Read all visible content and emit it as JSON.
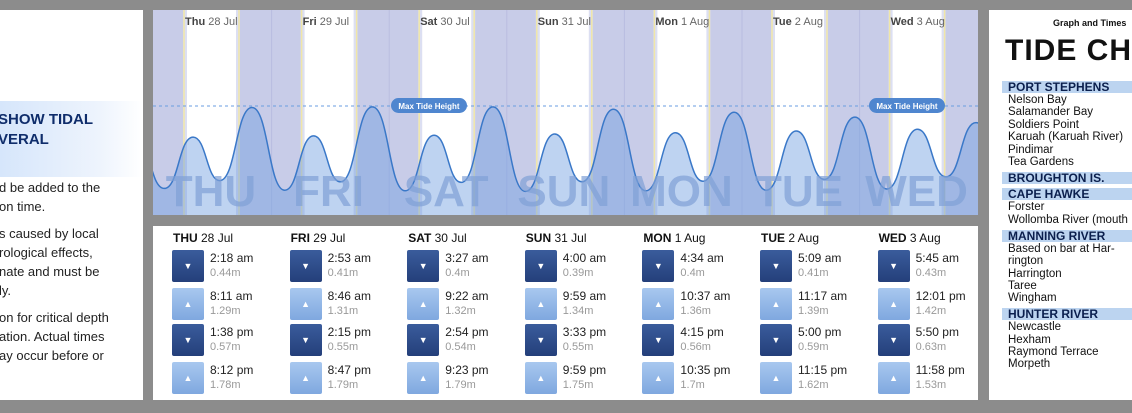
{
  "left": {
    "heading": [
      "SHOW TIDAL",
      "VERAL"
    ],
    "para1": [
      "d be added to the",
      "on time."
    ],
    "para2": [
      "s caused by local",
      "rological effects,",
      "nate and must be",
      "ly."
    ],
    "para3": [
      "on for critical depth",
      "ation. Actual times",
      "ay occur before or"
    ]
  },
  "chart": {
    "max_label": "Max Tide Height",
    "days": [
      {
        "dow": "Thu",
        "date": "28 Jul",
        "big": "THU"
      },
      {
        "dow": "Fri",
        "date": "29 Jul",
        "big": "FRI"
      },
      {
        "dow": "Sat",
        "date": "30 Jul",
        "big": "SAT"
      },
      {
        "dow": "Sun",
        "date": "31 Jul",
        "big": "SUN"
      },
      {
        "dow": "Mon",
        "date": "1 Aug",
        "big": "MON"
      },
      {
        "dow": "Tue",
        "date": "2 Aug",
        "big": "TUE"
      },
      {
        "dow": "Wed",
        "date": "3 Aug",
        "big": "WED"
      }
    ],
    "colors": {
      "night": "#c8cce8",
      "day": "#ffffff",
      "wave": "#6e9ee0",
      "line": "#3a78c8"
    }
  },
  "table": {
    "days": [
      {
        "dow": "THU",
        "date": "28 Jul",
        "tides": [
          {
            "type": "low",
            "time": "2:18 am",
            "height": "0.44m"
          },
          {
            "type": "high",
            "time": "8:11 am",
            "height": "1.29m"
          },
          {
            "type": "low",
            "time": "1:38 pm",
            "height": "0.57m"
          },
          {
            "type": "high",
            "time": "8:12 pm",
            "height": "1.78m"
          }
        ]
      },
      {
        "dow": "FRI",
        "date": "29 Jul",
        "tides": [
          {
            "type": "low",
            "time": "2:53 am",
            "height": "0.41m"
          },
          {
            "type": "high",
            "time": "8:46 am",
            "height": "1.31m"
          },
          {
            "type": "low",
            "time": "2:15 pm",
            "height": "0.55m"
          },
          {
            "type": "high",
            "time": "8:47 pm",
            "height": "1.79m"
          }
        ]
      },
      {
        "dow": "SAT",
        "date": "30 Jul",
        "tides": [
          {
            "type": "low",
            "time": "3:27 am",
            "height": "0.4m"
          },
          {
            "type": "high",
            "time": "9:22 am",
            "height": "1.32m"
          },
          {
            "type": "low",
            "time": "2:54 pm",
            "height": "0.54m"
          },
          {
            "type": "high",
            "time": "9:23 pm",
            "height": "1.79m"
          }
        ]
      },
      {
        "dow": "SUN",
        "date": "31 Jul",
        "tides": [
          {
            "type": "low",
            "time": "4:00 am",
            "height": "0.39m"
          },
          {
            "type": "high",
            "time": "9:59 am",
            "height": "1.34m"
          },
          {
            "type": "low",
            "time": "3:33 pm",
            "height": "0.55m"
          },
          {
            "type": "high",
            "time": "9:59 pm",
            "height": "1.75m"
          }
        ]
      },
      {
        "dow": "MON",
        "date": "1 Aug",
        "tides": [
          {
            "type": "low",
            "time": "4:34 am",
            "height": "0.4m"
          },
          {
            "type": "high",
            "time": "10:37 am",
            "height": "1.36m"
          },
          {
            "type": "low",
            "time": "4:15 pm",
            "height": "0.56m"
          },
          {
            "type": "high",
            "time": "10:35 pm",
            "height": "1.7m"
          }
        ]
      },
      {
        "dow": "TUE",
        "date": "2 Aug",
        "tides": [
          {
            "type": "low",
            "time": "5:09 am",
            "height": "0.41m"
          },
          {
            "type": "high",
            "time": "11:17 am",
            "height": "1.39m"
          },
          {
            "type": "low",
            "time": "5:00 pm",
            "height": "0.59m"
          },
          {
            "type": "high",
            "time": "11:15 pm",
            "height": "1.62m"
          }
        ]
      },
      {
        "dow": "WED",
        "date": "3 Aug",
        "tides": [
          {
            "type": "low",
            "time": "5:45 am",
            "height": "0.43m"
          },
          {
            "type": "high",
            "time": "12:01 pm",
            "height": "1.42m"
          },
          {
            "type": "low",
            "time": "5:50 pm",
            "height": "0.63m"
          },
          {
            "type": "high",
            "time": "11:58 pm",
            "height": "1.53m"
          }
        ]
      }
    ],
    "arrow_low": "▼",
    "arrow_high": "▲"
  },
  "right": {
    "graph_and_times": "Graph and Times",
    "title": "TIDE CH",
    "sections": [
      {
        "name": "PORT STEPHENS",
        "items": [
          "Nelson Bay",
          "Salamander Bay",
          "Soldiers Point",
          "Karuah (Karuah River)",
          "Pindimar",
          "Tea Gardens"
        ]
      },
      {
        "name": "BROUGHTON IS.",
        "items": []
      },
      {
        "name": "CAPE HAWKE",
        "items": [
          "Forster",
          "Wollomba River (mouth"
        ]
      },
      {
        "name": "MANNING RIVER",
        "items": [
          "Based on bar at Har-",
          "rington",
          "Harrington",
          "Taree",
          "Wingham"
        ]
      },
      {
        "name": "HUNTER RIVER",
        "items": [
          "Newcastle",
          "Hexham",
          "Raymond Terrace",
          "Morpeth"
        ]
      }
    ]
  }
}
